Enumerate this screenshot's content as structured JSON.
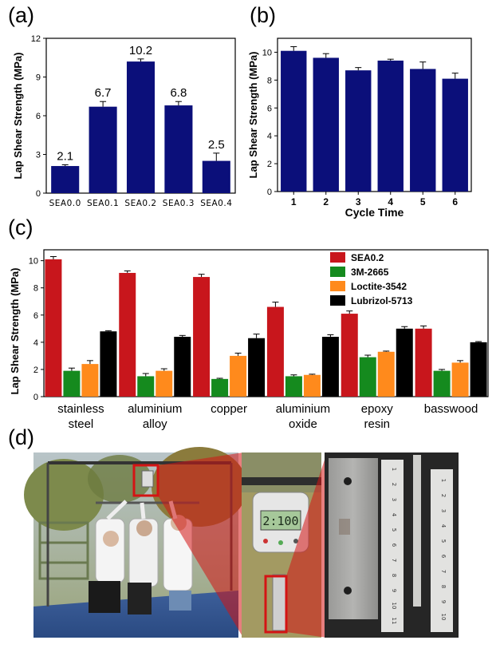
{
  "panels": {
    "a": "(a)",
    "b": "(b)",
    "c": "(c)",
    "d": "(d)"
  },
  "colors": {
    "navy": "#0b0f7a",
    "red": "#c8161c",
    "green": "#158a1e",
    "orange": "#ff8a1c",
    "black": "#000000"
  },
  "chart_data": [
    {
      "id": "a",
      "type": "bar",
      "categories": [
        "SEA0.0",
        "SEA0.1",
        "SEA0.2",
        "SEA0.3",
        "SEA0.4"
      ],
      "values": [
        2.1,
        6.7,
        10.2,
        6.8,
        2.5
      ],
      "errors": [
        0.1,
        0.4,
        0.2,
        0.3,
        0.6
      ],
      "data_labels": [
        "2.1",
        "6.7",
        "10.2",
        "6.8",
        "2.5"
      ],
      "ylabel": "Lap Shear Strength (MPa)",
      "ylim": [
        0,
        12
      ],
      "yticks": [
        0,
        3,
        6,
        9,
        12
      ]
    },
    {
      "id": "b",
      "type": "bar",
      "categories": [
        "1",
        "2",
        "3",
        "4",
        "5",
        "6"
      ],
      "values": [
        10.1,
        9.6,
        8.7,
        9.4,
        8.8,
        8.1
      ],
      "errors": [
        0.3,
        0.3,
        0.2,
        0.1,
        0.5,
        0.4
      ],
      "xlabel": "Cycle Time",
      "ylabel": "Lap Shear Strength (MPa)",
      "ylim": [
        0,
        11
      ],
      "yticks": [
        0,
        2,
        4,
        6,
        8,
        10
      ]
    },
    {
      "id": "c",
      "type": "bar",
      "categories": [
        [
          "stainless",
          "steel"
        ],
        [
          "aluminium",
          "alloy"
        ],
        [
          "copper"
        ],
        [
          "aluminium",
          "oxide"
        ],
        [
          "epoxy",
          "resin"
        ],
        [
          "basswood"
        ]
      ],
      "series": [
        {
          "name": "SEA0.2",
          "values": [
            10.1,
            9.1,
            8.8,
            6.6,
            6.1,
            5.0
          ],
          "errors": [
            0.2,
            0.15,
            0.2,
            0.35,
            0.2,
            0.2
          ]
        },
        {
          "name": "3M-2665",
          "values": [
            1.9,
            1.5,
            1.3,
            1.5,
            2.9,
            1.9
          ],
          "errors": [
            0.2,
            0.2,
            0.05,
            0.1,
            0.15,
            0.1
          ]
        },
        {
          "name": "Loctite-3542",
          "values": [
            2.4,
            1.9,
            3.0,
            1.6,
            3.3,
            2.5
          ],
          "errors": [
            0.25,
            0.15,
            0.2,
            0.05,
            0.05,
            0.15
          ]
        },
        {
          "name": "Lubrizol-5713",
          "values": [
            4.8,
            4.4,
            4.3,
            4.4,
            5.0,
            4.0
          ],
          "errors": [
            0.05,
            0.1,
            0.3,
            0.15,
            0.15,
            0.05
          ]
        }
      ],
      "ylabel": "Lap Shear Strength (MPa)",
      "ylim": [
        0,
        10.8
      ],
      "yticks": [
        0,
        2,
        4,
        6,
        8,
        10
      ],
      "legend": "top-right"
    }
  ],
  "photo": {
    "scale_reading": "2:100",
    "ruler_numbers": [
      "1",
      "2",
      "3",
      "4",
      "5",
      "6",
      "7",
      "8",
      "9",
      "10",
      "11"
    ]
  }
}
